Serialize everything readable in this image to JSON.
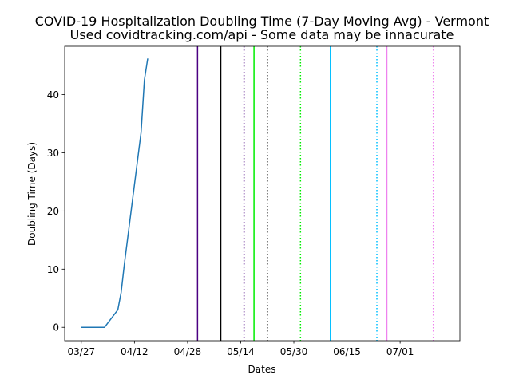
{
  "chart_data": {
    "type": "line",
    "title": "COVID-19 Hospitalization Doubling Time (7-Day Moving Avg) - Vermont",
    "subtitle": "Used covidtracking.com/api - Some data may be innacurate",
    "xlabel": "Dates",
    "ylabel": "Doubling Time (Days)",
    "x_tick_labels": [
      "03/27",
      "04/12",
      "04/28",
      "05/14",
      "05/30",
      "06/15",
      "07/01"
    ],
    "x_tick_dates": [
      "2020-03-27",
      "2020-04-12",
      "2020-04-28",
      "2020-05-14",
      "2020-05-30",
      "2020-06-15",
      "2020-07-01"
    ],
    "xlim": [
      "2020-03-22",
      "2020-07-19"
    ],
    "ylim": [
      -2.3,
      48.3
    ],
    "y_ticks": [
      0,
      10,
      20,
      30,
      40
    ],
    "grid": false,
    "series": [
      {
        "color": "#1f77b4",
        "x": [
          "2020-03-27",
          "2020-04-03",
          "2020-04-07",
          "2020-04-08",
          "2020-04-09",
          "2020-04-10",
          "2020-04-11",
          "2020-04-12",
          "2020-04-13",
          "2020-04-14",
          "2020-04-15",
          "2020-04-16"
        ],
        "y": [
          0,
          0,
          3,
          6,
          11,
          15.5,
          20,
          24.5,
          29,
          33.5,
          42.5,
          46.2
        ]
      }
    ],
    "vertical_lines": [
      {
        "date": "2020-05-01",
        "color": "#4b0082",
        "style": "solid"
      },
      {
        "date": "2020-05-08",
        "color": "#000000",
        "style": "solid"
      },
      {
        "date": "2020-05-15",
        "color": "#4b0082",
        "style": "dotted"
      },
      {
        "date": "2020-05-18",
        "color": "#00ee00",
        "style": "solid"
      },
      {
        "date": "2020-05-22",
        "color": "#000000",
        "style": "dotted"
      },
      {
        "date": "2020-06-01",
        "color": "#00ee00",
        "style": "dotted"
      },
      {
        "date": "2020-06-10",
        "color": "#00bfff",
        "style": "solid"
      },
      {
        "date": "2020-06-24",
        "color": "#00bfff",
        "style": "dotted"
      },
      {
        "date": "2020-06-27",
        "color": "#ee82ee",
        "style": "solid"
      },
      {
        "date": "2020-07-11",
        "color": "#ee82ee",
        "style": "dotted"
      }
    ]
  }
}
